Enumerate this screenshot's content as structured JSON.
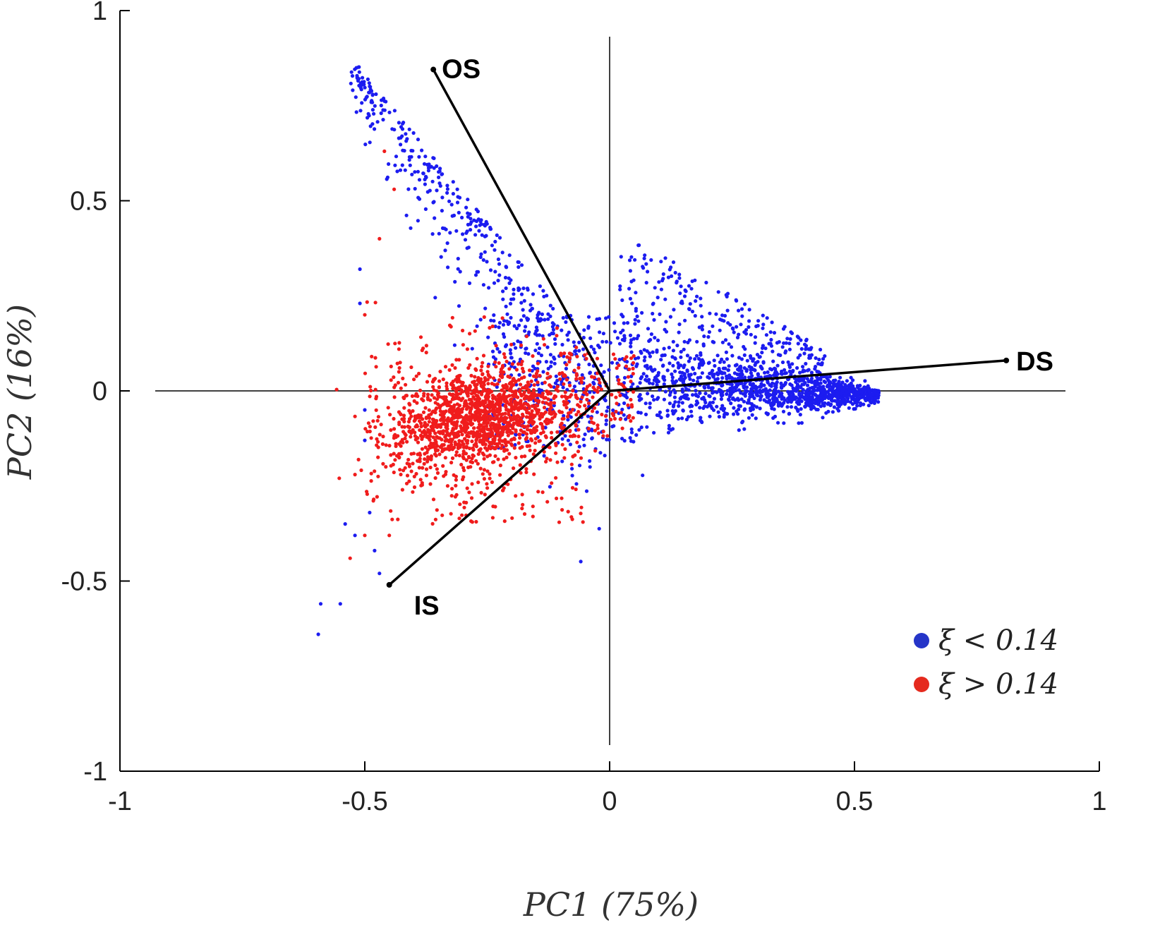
{
  "chart_data": {
    "type": "scatter",
    "title": "",
    "xlabel": "PC1 (75%)",
    "ylabel": "PC2 (16%)",
    "xlim": [
      -1,
      1
    ],
    "ylim": [
      -1,
      1
    ],
    "x_ticks": [
      -1,
      -0.5,
      0,
      0.5,
      1
    ],
    "y_ticks": [
      -1,
      -0.5,
      0,
      0.5,
      1
    ],
    "x_tick_labels": [
      "-1",
      "-0.5",
      "0",
      "0.5",
      "1"
    ],
    "y_tick_labels": [
      "-1",
      "-0.5",
      "0",
      "0.5",
      "1"
    ],
    "grid": false,
    "legend_position": "bottom-right",
    "colors": {
      "low": "#1c1cf0",
      "high": "#f01c1c",
      "legend_low": "#2535c8",
      "legend_high": "#e52a1e",
      "axis": "#000000"
    },
    "series": [
      {
        "name": "ξ < 0.14",
        "color": "#1c1cf0",
        "approx_points": 2200
      },
      {
        "name": "ξ > 0.14",
        "color": "#f01c1c",
        "approx_points": 1800
      }
    ],
    "loadings": [
      {
        "name": "OS",
        "x": -0.36,
        "y": 0.845
      },
      {
        "name": "IS",
        "x": -0.45,
        "y": -0.51
      },
      {
        "name": "DS",
        "x": 0.81,
        "y": 0.08
      }
    ]
  }
}
